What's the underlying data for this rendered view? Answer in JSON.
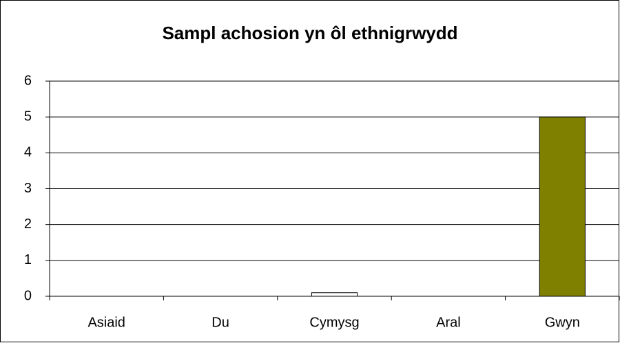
{
  "chart_data": {
    "type": "bar",
    "title": "Sampl achosion yn ôl ethnigrwydd",
    "categories": [
      "Asiaid",
      "Du",
      "Cymysg",
      "Aral",
      "Gwyn"
    ],
    "values": [
      0,
      0,
      0.1,
      0,
      5
    ],
    "colors": [
      "#808000",
      "#808000",
      "#ffffff",
      "#808000",
      "#808000"
    ],
    "ylim": [
      0,
      6
    ],
    "yticks": [
      0,
      1,
      2,
      3,
      4,
      5,
      6
    ],
    "grid": true
  }
}
